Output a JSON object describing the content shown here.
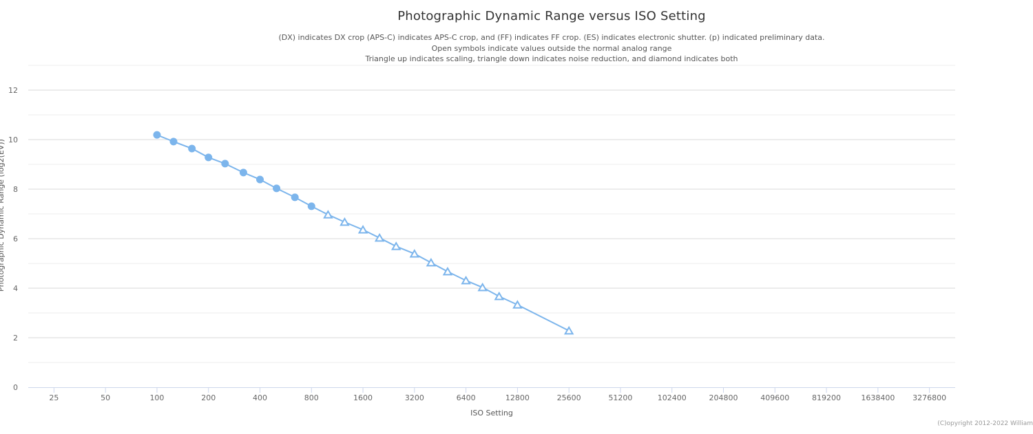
{
  "chart_data": {
    "type": "line",
    "title": "Photographic Dynamic Range versus ISO Setting",
    "subtitle_lines": [
      "(DX) indicates DX crop (APS-C) indicates APS-C crop, and (FF) indicates FF crop. (ES) indicates electronic shutter. (p) indicated preliminary data.",
      "Open symbols indicate values outside the normal analog range",
      "Triangle up indicates scaling, triangle down indicates noise reduction, and diamond indicates both"
    ],
    "xlabel": "ISO Setting",
    "ylabel": "Photographic Dynamic Range (log2(EV))",
    "x_scale": "log2",
    "x_tick_labels": [
      "25",
      "50",
      "100",
      "200",
      "400",
      "800",
      "1600",
      "3200",
      "6400",
      "12800",
      "25600",
      "51200",
      "102400",
      "204800",
      "409600",
      "819200",
      "1638400",
      "3276800"
    ],
    "y_tick_labels": [
      "0",
      "2",
      "4",
      "6",
      "8",
      "10",
      "12"
    ],
    "ylim": [
      0,
      13
    ],
    "grid": true,
    "legend": "none",
    "series": [
      {
        "name": "Camera",
        "color": "#7cb5ec",
        "points": [
          {
            "iso": 100,
            "dr": 10.19,
            "marker": "circle"
          },
          {
            "iso": 125,
            "dr": 9.92,
            "marker": "circle"
          },
          {
            "iso": 160,
            "dr": 9.64,
            "marker": "circle"
          },
          {
            "iso": 200,
            "dr": 9.28,
            "marker": "circle"
          },
          {
            "iso": 250,
            "dr": 9.03,
            "marker": "circle"
          },
          {
            "iso": 320,
            "dr": 8.67,
            "marker": "circle"
          },
          {
            "iso": 400,
            "dr": 8.39,
            "marker": "circle"
          },
          {
            "iso": 500,
            "dr": 8.03,
            "marker": "circle"
          },
          {
            "iso": 640,
            "dr": 7.67,
            "marker": "circle"
          },
          {
            "iso": 800,
            "dr": 7.31,
            "marker": "circle"
          },
          {
            "iso": 1000,
            "dr": 6.97,
            "marker": "open-triangle-up"
          },
          {
            "iso": 1250,
            "dr": 6.67,
            "marker": "open-triangle-up"
          },
          {
            "iso": 1600,
            "dr": 6.36,
            "marker": "open-triangle-up"
          },
          {
            "iso": 2000,
            "dr": 6.03,
            "marker": "open-triangle-up"
          },
          {
            "iso": 2500,
            "dr": 5.69,
            "marker": "open-triangle-up"
          },
          {
            "iso": 3200,
            "dr": 5.39,
            "marker": "open-triangle-up"
          },
          {
            "iso": 4000,
            "dr": 5.03,
            "marker": "open-triangle-up"
          },
          {
            "iso": 5000,
            "dr": 4.67,
            "marker": "open-triangle-up"
          },
          {
            "iso": 6400,
            "dr": 4.31,
            "marker": "open-triangle-up"
          },
          {
            "iso": 8000,
            "dr": 4.03,
            "marker": "open-triangle-up"
          },
          {
            "iso": 10000,
            "dr": 3.67,
            "marker": "open-triangle-up"
          },
          {
            "iso": 12800,
            "dr": 3.33,
            "marker": "open-triangle-up"
          },
          {
            "iso": 25600,
            "dr": 2.28,
            "marker": "open-triangle-up"
          }
        ]
      }
    ]
  },
  "footer": {
    "copyright": "(C)opyright 2012-2022 William"
  }
}
